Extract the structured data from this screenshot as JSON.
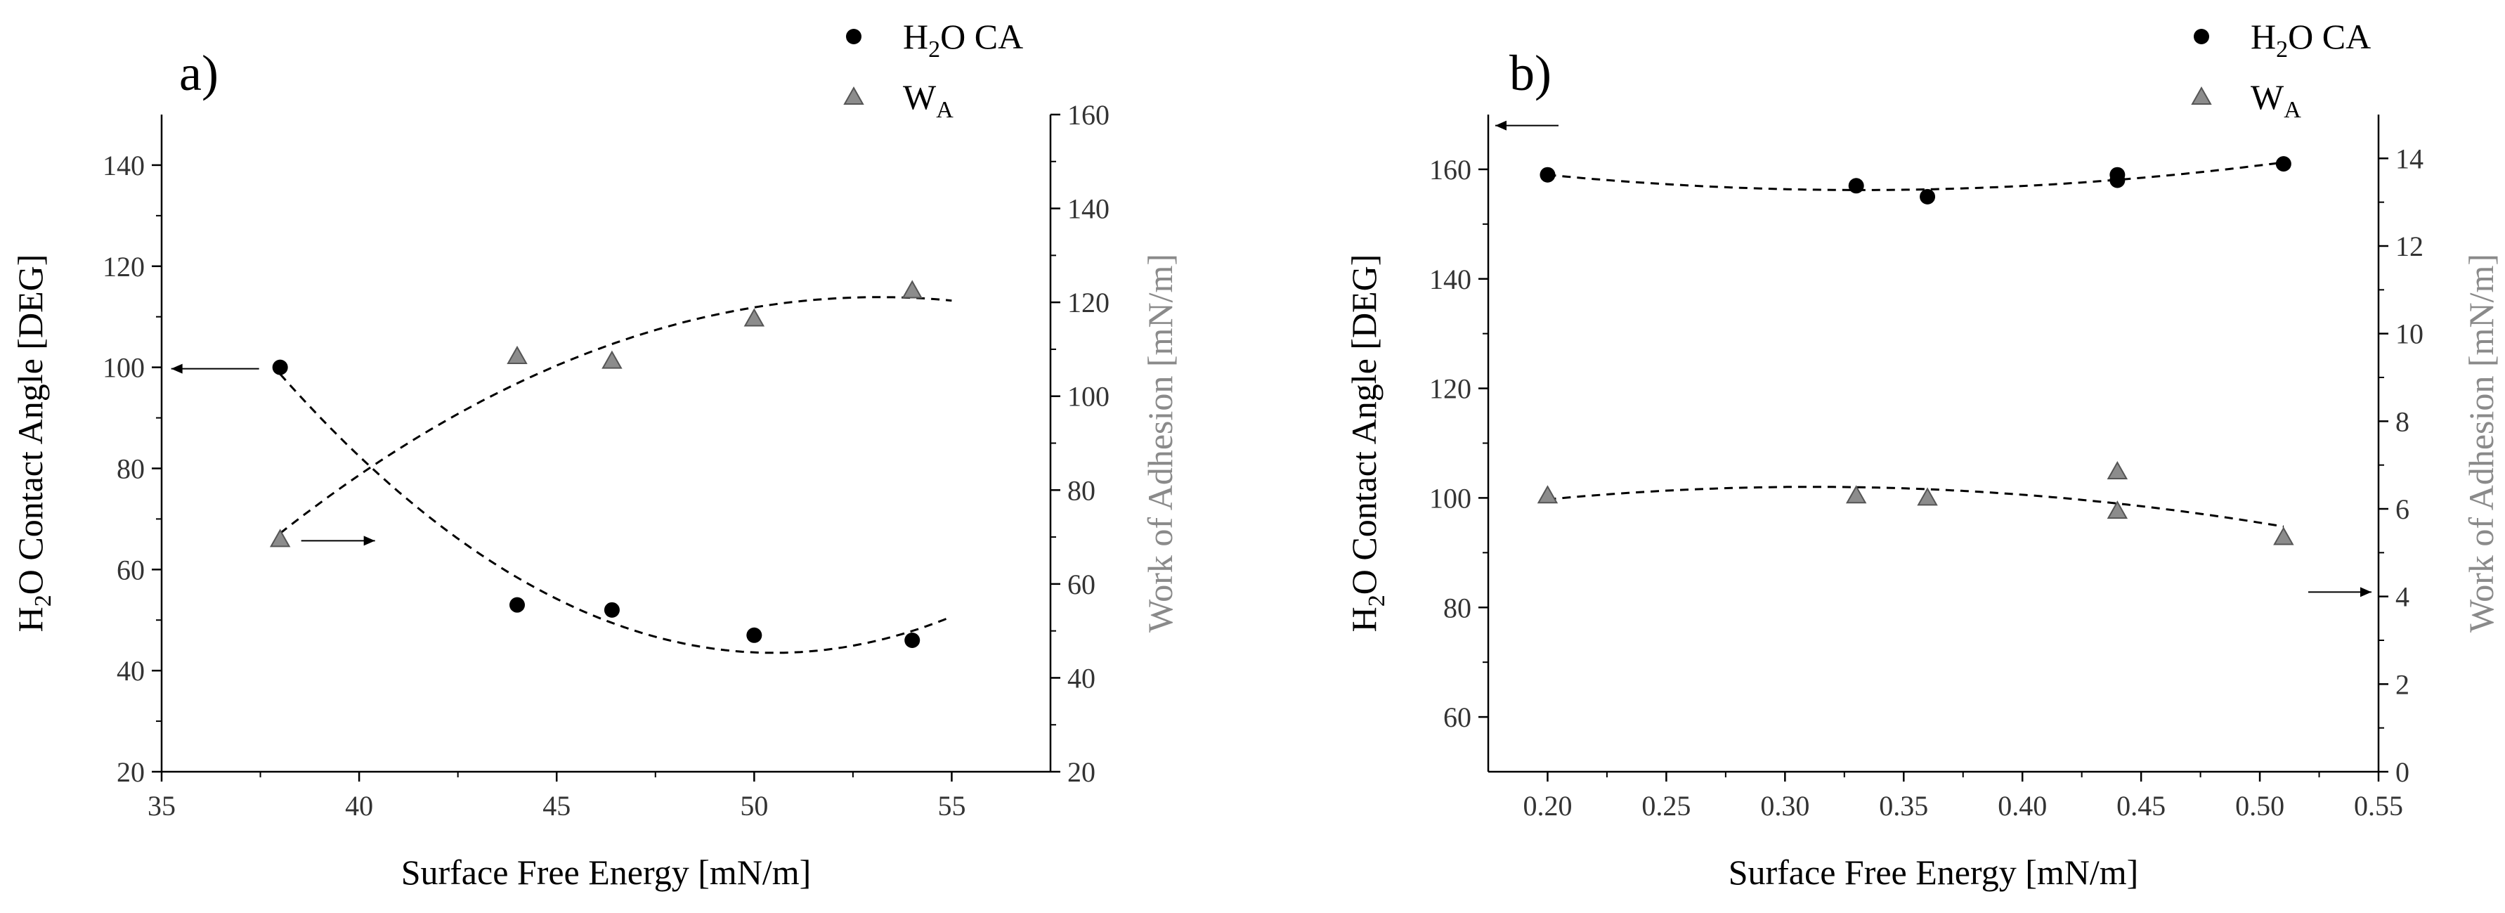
{
  "chart_data": [
    {
      "type": "scatter",
      "panel_label": "a)",
      "xlabel": "Surface Free Energy [mN/m]",
      "ylabel": "H2O Contact Angle [DEG]",
      "ylabel_parts": [
        "H",
        "2",
        "O Contact Angle [DEG]"
      ],
      "y2label": "Work of Adhesion [mN/m]",
      "xlim": [
        35,
        57.5
      ],
      "ylim": [
        20,
        150
      ],
      "y2lim": [
        20,
        160
      ],
      "x_ticks": [
        "35",
        "40",
        "45",
        "50",
        "55"
      ],
      "x_tick_values": [
        35,
        40,
        45,
        50,
        55
      ],
      "y_ticks": [
        "20",
        "40",
        "60",
        "80",
        "100",
        "120",
        "140"
      ],
      "y_tick_values": [
        20,
        40,
        60,
        80,
        100,
        120,
        140
      ],
      "y2_ticks": [
        "20",
        "40",
        "60",
        "80",
        "100",
        "120",
        "140",
        "160"
      ],
      "y2_tick_values": [
        20,
        40,
        60,
        80,
        100,
        120,
        140,
        160
      ],
      "legend": [
        {
          "parts": [
            "H",
            "2",
            "O CA"
          ],
          "marker": "circle"
        },
        {
          "parts": [
            "W",
            "A",
            ""
          ],
          "marker": "triangle"
        }
      ],
      "series": [
        {
          "name": "H2O CA",
          "axis": "left",
          "marker": "circle",
          "color": "#000000",
          "x": [
            38,
            44,
            46.4,
            50,
            54
          ],
          "y": [
            100,
            53,
            52,
            47,
            46
          ],
          "fit": [
            38,
            44,
            46.4,
            50,
            54,
            55
          ]
        },
        {
          "name": "WA",
          "axis": "right",
          "marker": "triangle",
          "color": "#8c8c8c",
          "x": [
            38,
            44,
            46.4,
            50,
            54
          ],
          "y": [
            69.5,
            108.5,
            107.5,
            116.5,
            122.5
          ],
          "fit": [
            38,
            44,
            46.4,
            50,
            54,
            55
          ]
        }
      ],
      "annotations": [
        {
          "series": "H2O CA",
          "direction": "left"
        },
        {
          "series": "WA",
          "direction": "right"
        }
      ]
    },
    {
      "type": "scatter",
      "panel_label": "b)",
      "xlabel": "Surface Free Energy [mN/m]",
      "ylabel": "H2O Contact Angle [DEG]",
      "ylabel_parts": [
        "H",
        "2",
        "O Contact Angle [DEG]"
      ],
      "y2label": "Work of Adhesion [mN/m]",
      "xlim": [
        0.175,
        0.55
      ],
      "ylim": [
        50,
        170
      ],
      "y2lim": [
        0,
        15
      ],
      "x_ticks": [
        "0.20",
        "0.25",
        "0.30",
        "0.35",
        "0.40",
        "0.45",
        "0.50",
        "0.55"
      ],
      "x_tick_values": [
        0.2,
        0.25,
        0.3,
        0.35,
        0.4,
        0.45,
        0.5,
        0.55
      ],
      "y_ticks": [
        "60",
        "80",
        "100",
        "120",
        "140",
        "160"
      ],
      "y_tick_values": [
        60,
        80,
        100,
        120,
        140,
        160
      ],
      "y2_ticks": [
        "0",
        "2",
        "4",
        "6",
        "8",
        "10",
        "12",
        "14"
      ],
      "y2_tick_values": [
        0,
        2,
        4,
        6,
        8,
        10,
        12,
        14
      ],
      "legend": [
        {
          "parts": [
            "H",
            "2",
            "O CA"
          ],
          "marker": "circle"
        },
        {
          "parts": [
            "W",
            "A",
            ""
          ],
          "marker": "triangle"
        }
      ],
      "series": [
        {
          "name": "H2O CA",
          "axis": "left",
          "marker": "circle",
          "color": "#000000",
          "x": [
            0.2,
            0.33,
            0.36,
            0.44,
            0.44,
            0.51
          ],
          "y": [
            159,
            157,
            155,
            159,
            158,
            161
          ],
          "fit": [
            0.2,
            0.33,
            0.36,
            0.44,
            0.51
          ]
        },
        {
          "name": "WA",
          "axis": "right",
          "marker": "triangle",
          "color": "#8c8c8c",
          "x": [
            0.2,
            0.33,
            0.36,
            0.44,
            0.44,
            0.51
          ],
          "y": [
            6.3,
            6.3,
            6.25,
            6.85,
            5.95,
            5.35
          ],
          "fit": [
            0.2,
            0.33,
            0.36,
            0.44,
            0.51
          ]
        }
      ],
      "annotations": [
        {
          "series": "H2O CA",
          "direction": "left"
        },
        {
          "series": "WA",
          "direction": "right"
        }
      ]
    }
  ]
}
